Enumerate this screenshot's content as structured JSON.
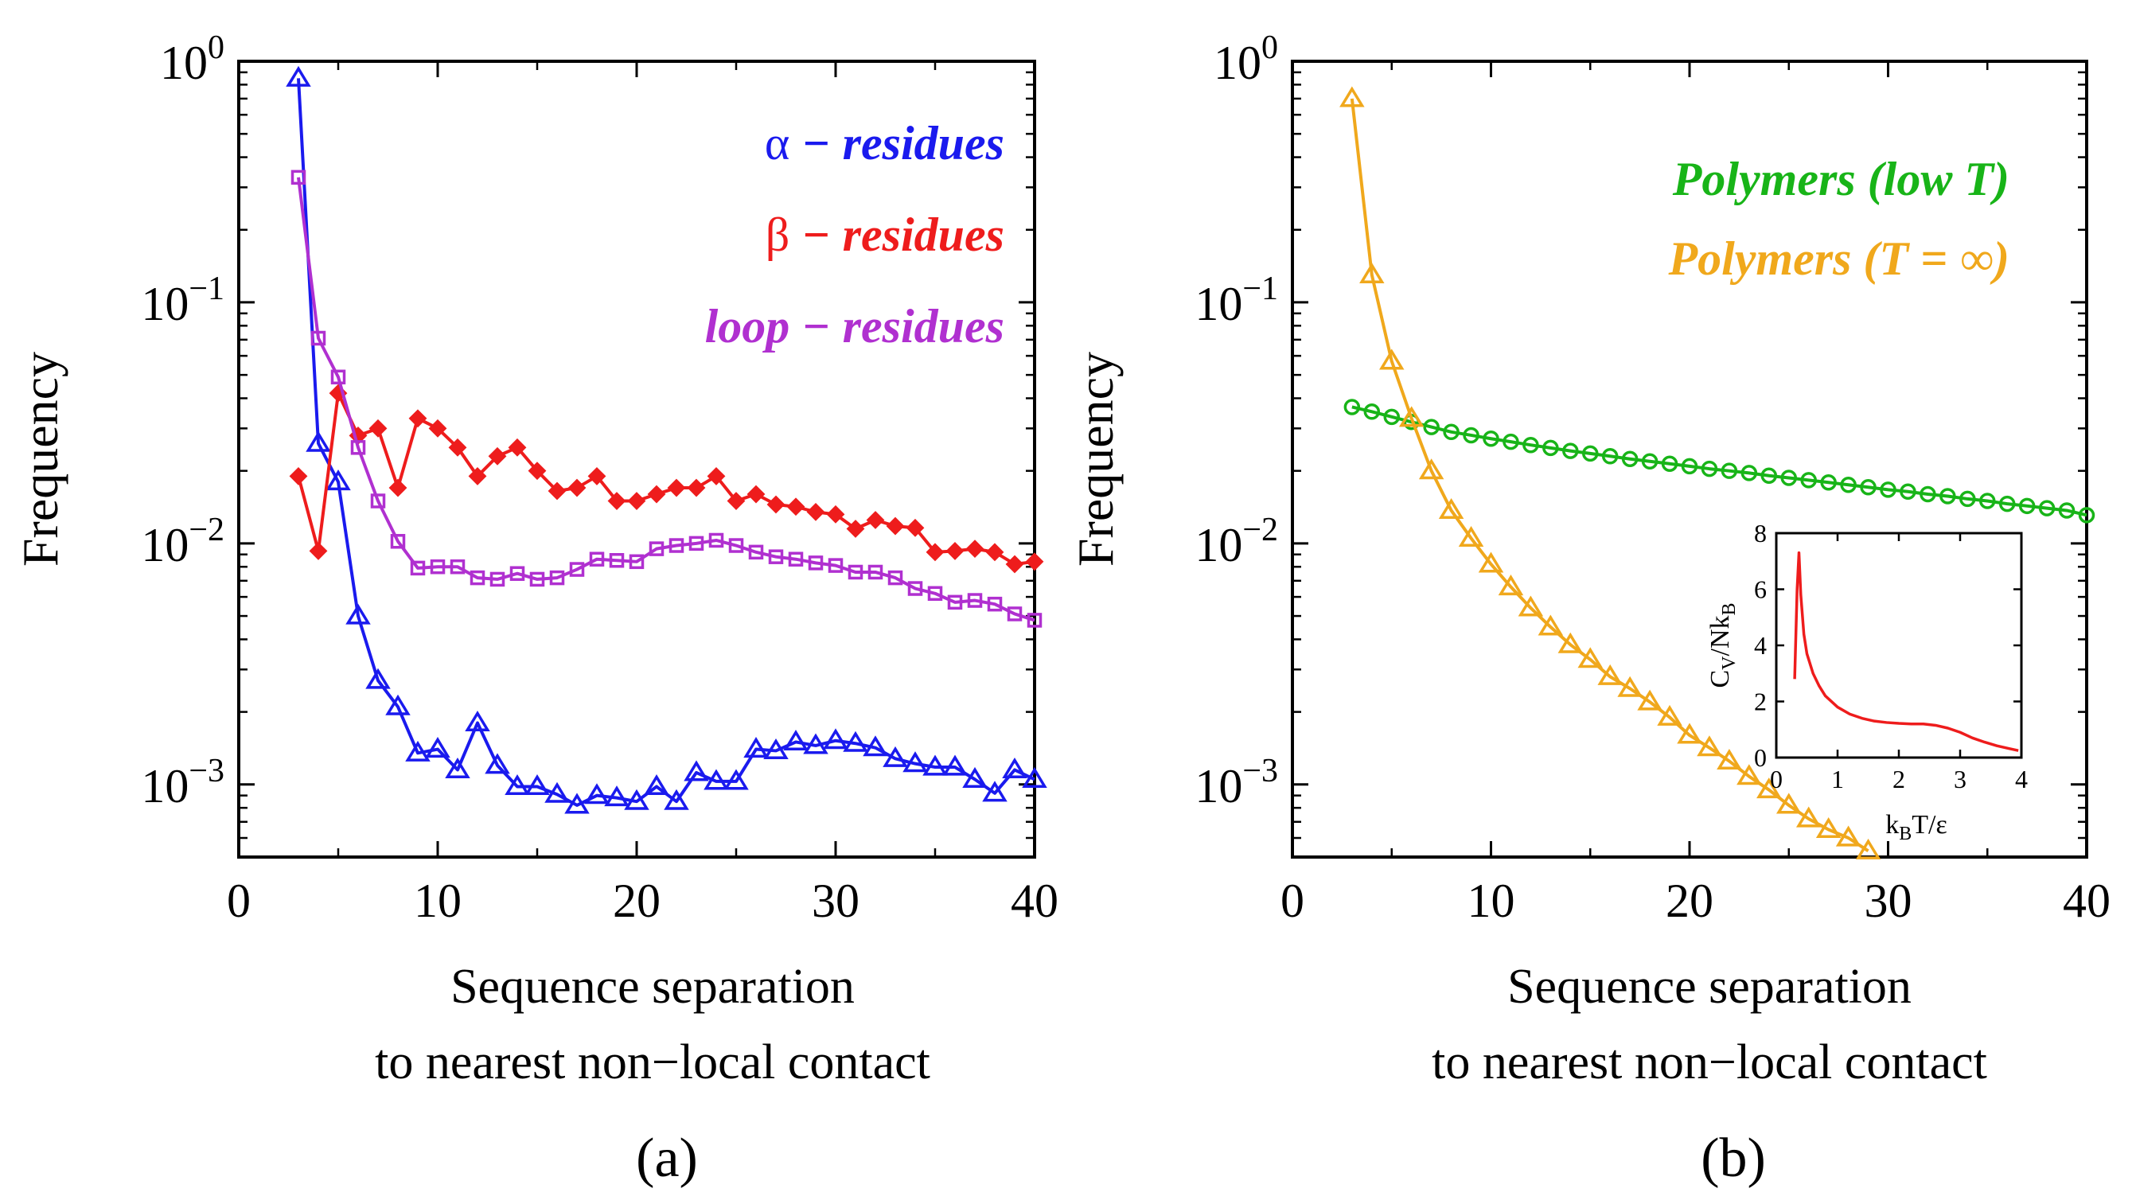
{
  "chart_data": [
    {
      "type": "line",
      "panel_label": "(a)",
      "ylabel": "Frequency",
      "xlabel_line1": "Sequence separation",
      "xlabel_line2": "to nearest non−local contact",
      "xlim": [
        0,
        40
      ],
      "ylim": [
        0.0005,
        1
      ],
      "y_scale": "log",
      "x_ticks": [
        0,
        10,
        20,
        30,
        40
      ],
      "y_ticks": [
        {
          "value": 1,
          "base": "10",
          "exp": "0"
        },
        {
          "value": 0.1,
          "base": "10",
          "exp": "−1"
        },
        {
          "value": 0.01,
          "base": "10",
          "exp": "−2"
        },
        {
          "value": 0.001,
          "base": "10",
          "exp": "−3"
        }
      ],
      "legend_position": "top-right",
      "series": [
        {
          "name_symbol": "α",
          "name_text": " − residues",
          "color": "#1a1aee",
          "marker": "triangle",
          "x": [
            3,
            4,
            5,
            6,
            7,
            8,
            9,
            10,
            11,
            12,
            13,
            14,
            15,
            16,
            17,
            18,
            19,
            20,
            21,
            22,
            23,
            24,
            25,
            26,
            27,
            28,
            29,
            30,
            31,
            32,
            33,
            34,
            35,
            36,
            37,
            38,
            39,
            40
          ],
          "y": [
            0.85,
            0.026,
            0.018,
            0.005,
            0.0027,
            0.0021,
            0.00135,
            0.0014,
            0.00115,
            0.0018,
            0.0012,
            0.00098,
            0.00098,
            0.00091,
            0.00082,
            0.0009,
            0.00088,
            0.00085,
            0.00098,
            0.00085,
            0.00112,
            0.00103,
            0.00103,
            0.0014,
            0.00138,
            0.0015,
            0.00145,
            0.00152,
            0.00148,
            0.00142,
            0.00128,
            0.00122,
            0.00118,
            0.00118,
            0.00105,
            0.00092,
            0.00115,
            0.00105
          ]
        },
        {
          "name_symbol": "β",
          "name_text": " − residues",
          "color": "#ee1c1c",
          "marker": "diamond",
          "x": [
            3,
            4,
            5,
            6,
            7,
            8,
            9,
            10,
            11,
            12,
            13,
            14,
            15,
            16,
            17,
            18,
            19,
            20,
            21,
            22,
            23,
            24,
            25,
            26,
            27,
            28,
            29,
            30,
            31,
            32,
            33,
            34,
            35,
            36,
            37,
            38,
            39,
            40
          ],
          "y": [
            0.019,
            0.0093,
            0.042,
            0.028,
            0.03,
            0.017,
            0.033,
            0.03,
            0.025,
            0.019,
            0.023,
            0.025,
            0.02,
            0.0165,
            0.017,
            0.019,
            0.015,
            0.015,
            0.016,
            0.017,
            0.017,
            0.019,
            0.015,
            0.016,
            0.0145,
            0.0142,
            0.0135,
            0.0132,
            0.0115,
            0.0125,
            0.0118,
            0.0116,
            0.0092,
            0.0093,
            0.0095,
            0.0092,
            0.0082,
            0.0084
          ]
        },
        {
          "name_symbol": "",
          "name_text": "loop − residues",
          "color": "#b030d0",
          "marker": "square",
          "x": [
            3,
            4,
            5,
            6,
            7,
            8,
            9,
            10,
            11,
            12,
            13,
            14,
            15,
            16,
            17,
            18,
            19,
            20,
            21,
            22,
            23,
            24,
            25,
            26,
            27,
            28,
            29,
            30,
            31,
            32,
            33,
            34,
            35,
            36,
            37,
            38,
            39,
            40
          ],
          "y": [
            0.33,
            0.071,
            0.049,
            0.025,
            0.015,
            0.0102,
            0.0079,
            0.008,
            0.008,
            0.0072,
            0.0071,
            0.0075,
            0.0071,
            0.0072,
            0.0078,
            0.0086,
            0.0085,
            0.0084,
            0.0095,
            0.0098,
            0.01,
            0.0103,
            0.0098,
            0.0092,
            0.0088,
            0.0086,
            0.0083,
            0.0081,
            0.0076,
            0.0076,
            0.0072,
            0.0065,
            0.0062,
            0.0057,
            0.0058,
            0.0056,
            0.0051,
            0.0048
          ]
        }
      ]
    },
    {
      "type": "line",
      "panel_label": "(b)",
      "ylabel": "Frequency",
      "xlabel_line1": "Sequence separation",
      "xlabel_line2": "to nearest non−local contact",
      "xlim": [
        0,
        40
      ],
      "ylim": [
        0.0005,
        1
      ],
      "y_scale": "log",
      "x_ticks": [
        0,
        10,
        20,
        30,
        40
      ],
      "y_ticks": [
        {
          "value": 1,
          "base": "10",
          "exp": "0"
        },
        {
          "value": 0.1,
          "base": "10",
          "exp": "−1"
        },
        {
          "value": 0.01,
          "base": "10",
          "exp": "−2"
        },
        {
          "value": 0.001,
          "base": "10",
          "exp": "−3"
        }
      ],
      "legend_position": "top-right",
      "series": [
        {
          "name_text": "Polymers (low T)",
          "color": "#18b418",
          "marker": "circle",
          "x": [
            3,
            4,
            5,
            6,
            7,
            8,
            9,
            10,
            11,
            12,
            13,
            14,
            15,
            16,
            17,
            18,
            19,
            20,
            21,
            22,
            23,
            24,
            25,
            26,
            27,
            28,
            29,
            30,
            31,
            32,
            33,
            34,
            35,
            36,
            37,
            38,
            39,
            40
          ],
          "y": [
            0.0368,
            0.0352,
            0.0335,
            0.0319,
            0.0304,
            0.029,
            0.0281,
            0.0272,
            0.0264,
            0.0256,
            0.0249,
            0.0242,
            0.0236,
            0.023,
            0.0224,
            0.0219,
            0.0214,
            0.0209,
            0.0204,
            0.02,
            0.0196,
            0.0191,
            0.0187,
            0.0183,
            0.0179,
            0.0175,
            0.0171,
            0.0167,
            0.0164,
            0.016,
            0.0157,
            0.0153,
            0.015,
            0.0146,
            0.0143,
            0.014,
            0.0137,
            0.0131
          ]
        },
        {
          "name_text": "Polymers (T = ∞)",
          "color": "#f0a81c",
          "marker": "triangle",
          "x": [
            3,
            4,
            5,
            6,
            7,
            8,
            9,
            10,
            11,
            12,
            13,
            14,
            15,
            16,
            17,
            18,
            19,
            20,
            21,
            22,
            23,
            24,
            25,
            26,
            27,
            28,
            29
          ],
          "y": [
            0.7,
            0.13,
            0.057,
            0.033,
            0.02,
            0.0137,
            0.0105,
            0.0082,
            0.0066,
            0.0054,
            0.0045,
            0.0038,
            0.0033,
            0.0028,
            0.0025,
            0.0022,
            0.0019,
            0.0016,
            0.00142,
            0.00125,
            0.00108,
            0.00095,
            0.00082,
            0.00072,
            0.00065,
            0.0006,
            0.00053
          ]
        }
      ],
      "inset": {
        "type": "line",
        "ylabel": "C_V/Nk_B",
        "xlabel": "k_BT/ε",
        "xlim": [
          0,
          4
        ],
        "ylim": [
          0,
          8
        ],
        "x_ticks": [
          0,
          1,
          2,
          3,
          4
        ],
        "y_ticks": [
          0,
          2,
          4,
          6,
          8
        ],
        "color": "#ee1c1c",
        "x": [
          0.3,
          0.34,
          0.37,
          0.4,
          0.45,
          0.5,
          0.6,
          0.7,
          0.8,
          1.0,
          1.2,
          1.4,
          1.6,
          1.8,
          2.0,
          2.2,
          2.4,
          2.6,
          2.8,
          3.0,
          3.2,
          3.4,
          3.6,
          3.8,
          3.95
        ],
        "y": [
          2.8,
          6.0,
          7.3,
          5.8,
          4.4,
          3.7,
          3.0,
          2.55,
          2.2,
          1.8,
          1.55,
          1.4,
          1.3,
          1.25,
          1.22,
          1.2,
          1.2,
          1.15,
          1.05,
          0.9,
          0.7,
          0.55,
          0.42,
          0.32,
          0.25
        ]
      }
    }
  ]
}
